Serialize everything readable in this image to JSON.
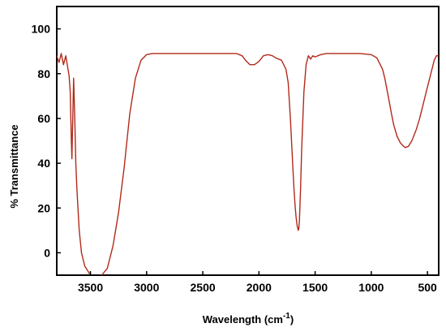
{
  "chart_data": {
    "type": "line",
    "title": "",
    "xlabel": "Wavelength (cm",
    "xlabel_sup": "-1",
    "xlabel_close": ")",
    "ylabel": "% Transmittance",
    "xlim": [
      3800,
      400
    ],
    "ylim": [
      -10,
      110
    ],
    "x_reversed": true,
    "x_ticks": [
      3500,
      3000,
      2500,
      2000,
      1500,
      1000,
      500
    ],
    "y_ticks": [
      0,
      20,
      40,
      60,
      80,
      100
    ],
    "y_tick_labels": [
      "0",
      "20",
      "40",
      "60",
      "80",
      "100"
    ],
    "grid": false,
    "line_color": "#b22a1a",
    "series": [
      {
        "x": [
          3800,
          3780,
          3760,
          3740,
          3720,
          3700,
          3690,
          3680,
          3670,
          3665,
          3660,
          3650,
          3640,
          3630,
          3620,
          3600,
          3580,
          3550,
          3500,
          3450,
          3400,
          3350,
          3300,
          3250,
          3200,
          3150,
          3100,
          3050,
          3000,
          2950,
          2900,
          2800,
          2600,
          2400,
          2200,
          2150,
          2120,
          2080,
          2040,
          2000,
          1960,
          1920,
          1880,
          1850,
          1800,
          1760,
          1740,
          1720,
          1700,
          1690,
          1680,
          1670,
          1660,
          1650,
          1645,
          1640,
          1630,
          1620,
          1600,
          1580,
          1560,
          1540,
          1520,
          1500,
          1450,
          1400,
          1300,
          1200,
          1100,
          1000,
          950,
          900,
          880,
          850,
          820,
          800,
          770,
          740,
          700,
          670,
          640,
          600,
          570,
          540,
          500,
          470,
          440,
          420,
          400
        ],
        "y": [
          88,
          85,
          89,
          84,
          88,
          82,
          79,
          72,
          50,
          42,
          55,
          78,
          60,
          40,
          28,
          10,
          0,
          -6,
          -10,
          -11,
          -10,
          -7,
          3,
          18,
          38,
          62,
          78,
          86,
          88.5,
          89,
          89,
          89,
          89,
          89,
          89,
          88,
          86,
          84,
          84,
          85.5,
          88,
          88.5,
          88,
          87,
          86,
          82,
          76,
          60,
          40,
          30,
          22,
          16,
          12,
          10,
          11,
          14,
          28,
          46,
          72,
          84,
          88,
          86.5,
          88,
          87.5,
          88.5,
          89,
          89,
          89,
          89,
          88.5,
          87,
          82,
          78,
          70,
          62,
          57,
          52,
          49,
          47,
          47.5,
          50,
          55,
          60,
          66,
          74,
          80,
          86,
          88,
          88
        ]
      }
    ]
  }
}
